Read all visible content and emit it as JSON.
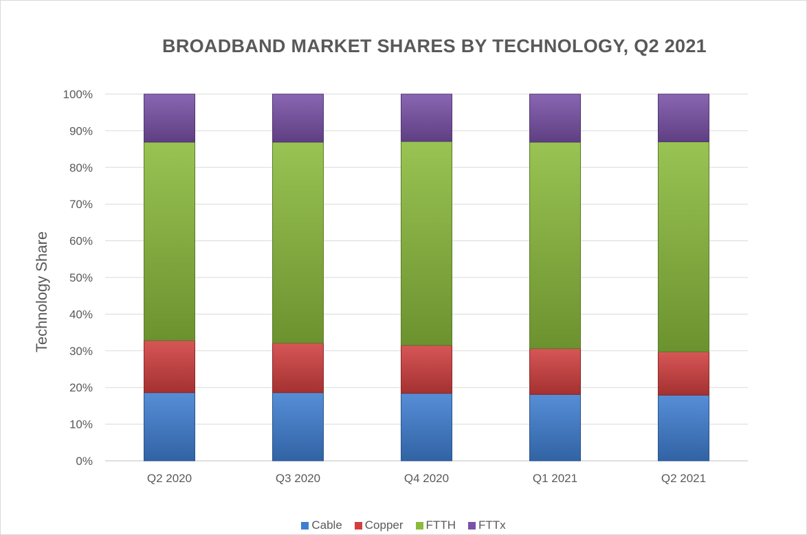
{
  "chart_data": {
    "type": "bar",
    "stacked": true,
    "title": "BROADBAND MARKET SHARES BY TECHNOLOGY,  Q2 2021",
    "ylabel": "Technology Share",
    "xlabel": "",
    "ylim": [
      0,
      100
    ],
    "yticks": [
      "0%",
      "10%",
      "20%",
      "30%",
      "40%",
      "50%",
      "60%",
      "70%",
      "80%",
      "90%",
      "100%"
    ],
    "categories": [
      "Q2 2020",
      "Q3 2020",
      "Q4 2020",
      "Q1 2021",
      "Q2 2021"
    ],
    "series": [
      {
        "name": "Cable",
        "color": "#3f7fd2",
        "values": [
          18.6,
          18.6,
          18.4,
          18.1,
          17.9
        ]
      },
      {
        "name": "Copper",
        "color": "#d23f3f",
        "values": [
          14.2,
          13.5,
          13.1,
          12.5,
          11.8
        ]
      },
      {
        "name": "FTTH",
        "color": "#8bbb3c",
        "values": [
          54.1,
          54.8,
          55.6,
          56.3,
          57.3
        ]
      },
      {
        "name": "FTTx",
        "color": "#7a51a8",
        "values": [
          13.1,
          13.1,
          12.9,
          13.1,
          13.0
        ]
      }
    ],
    "grid": true,
    "legend_position": "bottom"
  }
}
